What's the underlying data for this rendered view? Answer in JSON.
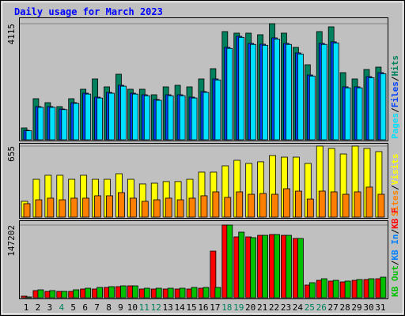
{
  "title": "Daily usage for March 2023",
  "legend_separator": "/",
  "chart_data": [
    {
      "type": "bar",
      "categories": [
        "1",
        "2",
        "3",
        "4",
        "5",
        "6",
        "7",
        "8",
        "9",
        "10",
        "11",
        "12",
        "13",
        "14",
        "15",
        "16",
        "17",
        "18",
        "19",
        "20",
        "21",
        "22",
        "23",
        "24",
        "25",
        "26",
        "27",
        "28",
        "29",
        "30",
        "31"
      ],
      "category_colors": [
        "#000000",
        "#000000",
        "#000000",
        "#00805c",
        "#000000",
        "#000000",
        "#000000",
        "#000000",
        "#000000",
        "#000000",
        "#00805c",
        "#00805c",
        "#000000",
        "#000000",
        "#000000",
        "#000000",
        "#000000",
        "#00805c",
        "#00805c",
        "#000000",
        "#000000",
        "#000000",
        "#000000",
        "#000000",
        "#00805c",
        "#00805c",
        "#000000",
        "#000000",
        "#000000",
        "#000000",
        "#000000"
      ],
      "ylim": [
        0,
        4115
      ],
      "yticks": [
        4115
      ],
      "series": [
        {
          "name": "Hits",
          "color": "#00805c",
          "values": [
            420,
            1456,
            1316,
            1176,
            1456,
            1792,
            2156,
            1876,
            2324,
            1792,
            1792,
            1596,
            1876,
            1932,
            1876,
            2156,
            2520,
            3836,
            3780,
            3780,
            3724,
            4115,
            3780,
            3276,
            2660,
            3836,
            4004,
            2380,
            2156,
            2492,
            2576
          ]
        },
        {
          "name": "Files",
          "color": "#0040ff",
          "values": [
            336,
            1176,
            1176,
            1092,
            1316,
            1652,
            1512,
            1680,
            1932,
            1652,
            1596,
            1428,
            1596,
            1596,
            1512,
            1708,
            2156,
            3276,
            3668,
            3416,
            3388,
            3612,
            3416,
            3080,
            2296,
            3416,
            3472,
            1876,
            1876,
            2240,
            2380
          ]
        },
        {
          "name": "Pages",
          "color": "#00e0ff",
          "values": [
            320,
            1150,
            1150,
            1070,
            1290,
            1620,
            1480,
            1650,
            1900,
            1620,
            1560,
            1400,
            1560,
            1560,
            1480,
            1680,
            2120,
            3240,
            3630,
            3380,
            3350,
            3570,
            3380,
            3040,
            2260,
            3380,
            3430,
            1840,
            1840,
            2200,
            2340
          ]
        }
      ]
    },
    {
      "type": "bar",
      "ylim": [
        0,
        655
      ],
      "yticks": [
        655
      ],
      "series": [
        {
          "name": "Visits",
          "color": "#ffff00",
          "values": [
            146,
            349,
            386,
            386,
            349,
            386,
            349,
            349,
            400,
            349,
            306,
            313,
            328,
            328,
            349,
            415,
            415,
            473,
            524,
            495,
            510,
            568,
            553,
            553,
            495,
            655,
            633,
            582,
            655,
            633,
            604
          ]
        },
        {
          "name": "Sites",
          "color": "#ff8000",
          "values": [
            124,
            160,
            175,
            160,
            175,
            175,
            197,
            197,
            226,
            175,
            146,
            160,
            175,
            160,
            175,
            197,
            233,
            182,
            233,
            211,
            218,
            211,
            262,
            240,
            167,
            240,
            233,
            211,
            233,
            277,
            211
          ]
        }
      ]
    },
    {
      "type": "bar",
      "ylim": [
        0,
        147202
      ],
      "yticks": [
        147202
      ],
      "series": [
        {
          "name": "KB F",
          "color": "#ff0000",
          "values": [
            3200,
            14400,
            12800,
            12800,
            12800,
            17600,
            17600,
            20800,
            22400,
            24000,
            17600,
            17600,
            17600,
            17600,
            17600,
            19200,
            94400,
            147202,
            123200,
            123200,
            126400,
            128000,
            126400,
            120000,
            25600,
            35200,
            33600,
            32000,
            35200,
            36800,
            38400
          ]
        },
        {
          "name": "KB In",
          "color": "#0080ff",
          "values": [
            0,
            0,
            0,
            0,
            0,
            0,
            0,
            0,
            0,
            0,
            0,
            0,
            0,
            0,
            0,
            0,
            0,
            0,
            0,
            0,
            0,
            0,
            0,
            0,
            0,
            0,
            0,
            0,
            0,
            0,
            0
          ]
        },
        {
          "name": "KB Out",
          "color": "#00c000",
          "values": [
            1600,
            16000,
            14400,
            12800,
            16000,
            19200,
            20800,
            22400,
            24000,
            24000,
            19200,
            19200,
            19200,
            19200,
            20800,
            20800,
            20800,
            147202,
            132800,
            121600,
            126400,
            128000,
            126400,
            120000,
            30400,
            38400,
            35200,
            33600,
            36800,
            38400,
            41600
          ]
        }
      ]
    }
  ]
}
